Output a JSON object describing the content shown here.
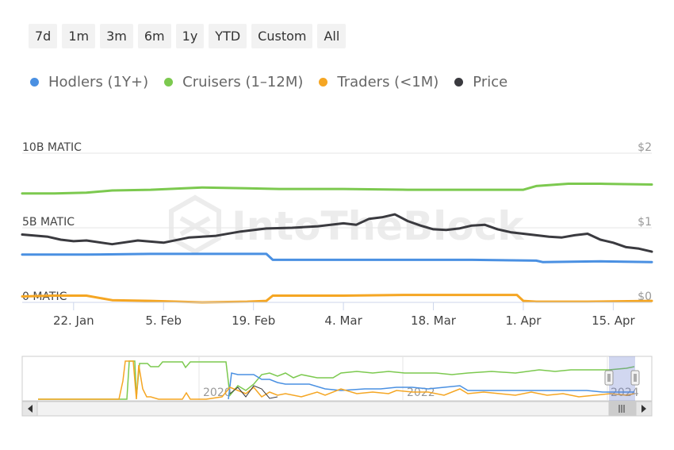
{
  "range_buttons": [
    "7d",
    "1m",
    "3m",
    "6m",
    "1y",
    "YTD",
    "Custom",
    "All"
  ],
  "watermark": "IntoTheBlock",
  "colors": {
    "hodlers": "#4a90e2",
    "cruisers": "#7cc94f",
    "traders": "#f5a623",
    "price": "#3a3a3f"
  },
  "chart_data": {
    "type": "line",
    "legend": [
      {
        "name": "Hodlers (1Y+)",
        "color": "#4a90e2"
      },
      {
        "name": "Cruisers (1–12M)",
        "color": "#7cc94f"
      },
      {
        "name": "Traders (<1M)",
        "color": "#f5a623"
      },
      {
        "name": "Price",
        "color": "#3a3a3f"
      }
    ],
    "legend_position": "top-left",
    "grid": true,
    "x_ticks": [
      "22. Jan",
      "5. Feb",
      "19. Feb",
      "4. Mar",
      "18. Mar",
      "1. Apr",
      "15. Apr"
    ],
    "x_range_days": [
      0,
      98
    ],
    "x_tick_days": [
      8,
      22,
      36,
      50,
      64,
      78,
      92
    ],
    "y_left_ticks": [
      "0 MATIC",
      "5B MATIC",
      "10B MATIC"
    ],
    "y_left_range": [
      0,
      10
    ],
    "y_right_ticks": [
      "$0",
      "$1",
      "$2"
    ],
    "y_right_range": [
      0,
      2
    ],
    "series": [
      {
        "name": "Hodlers (1Y+)",
        "axis": "left",
        "x": [
          0,
          10,
          20,
          30,
          38,
          39,
          50,
          60,
          70,
          80,
          81,
          90,
          98
        ],
        "y": [
          3.2,
          3.2,
          3.25,
          3.25,
          3.25,
          2.85,
          2.85,
          2.85,
          2.85,
          2.8,
          2.7,
          2.75,
          2.7
        ]
      },
      {
        "name": "Cruisers (1–12M)",
        "axis": "left",
        "x": [
          0,
          5,
          10,
          14,
          20,
          28,
          35,
          40,
          50,
          60,
          70,
          78,
          80,
          85,
          90,
          98
        ],
        "y": [
          7.3,
          7.3,
          7.35,
          7.5,
          7.55,
          7.7,
          7.65,
          7.6,
          7.6,
          7.55,
          7.55,
          7.55,
          7.8,
          7.95,
          7.95,
          7.9
        ]
      },
      {
        "name": "Traders (<1M)",
        "axis": "left",
        "x": [
          0,
          5,
          10,
          14,
          20,
          28,
          35,
          38,
          39,
          50,
          60,
          70,
          77,
          78,
          80,
          88,
          98
        ],
        "y": [
          0.4,
          0.45,
          0.45,
          0.15,
          0.1,
          0.0,
          0.05,
          0.1,
          0.45,
          0.45,
          0.5,
          0.5,
          0.5,
          0.1,
          0.05,
          0.05,
          0.1
        ]
      },
      {
        "name": "Price",
        "axis": "right",
        "x": [
          0,
          4,
          6,
          8,
          10,
          14,
          18,
          22,
          26,
          30,
          34,
          38,
          42,
          46,
          50,
          52,
          54,
          56,
          58,
          60,
          62,
          64,
          66,
          68,
          70,
          72,
          74,
          76,
          78,
          80,
          82,
          84,
          86,
          88,
          90,
          92,
          94,
          96,
          98
        ],
        "y": [
          0.91,
          0.88,
          0.84,
          0.82,
          0.83,
          0.78,
          0.83,
          0.8,
          0.87,
          0.89,
          0.95,
          0.99,
          1.0,
          1.02,
          1.06,
          1.04,
          1.12,
          1.14,
          1.18,
          1.09,
          1.03,
          0.98,
          0.97,
          0.99,
          1.03,
          1.04,
          0.98,
          0.94,
          0.92,
          0.9,
          0.88,
          0.87,
          0.9,
          0.92,
          0.84,
          0.8,
          0.74,
          0.72,
          0.68
        ]
      }
    ]
  },
  "navigator": {
    "year_labels": [
      "2020",
      "2022",
      "2024"
    ]
  }
}
